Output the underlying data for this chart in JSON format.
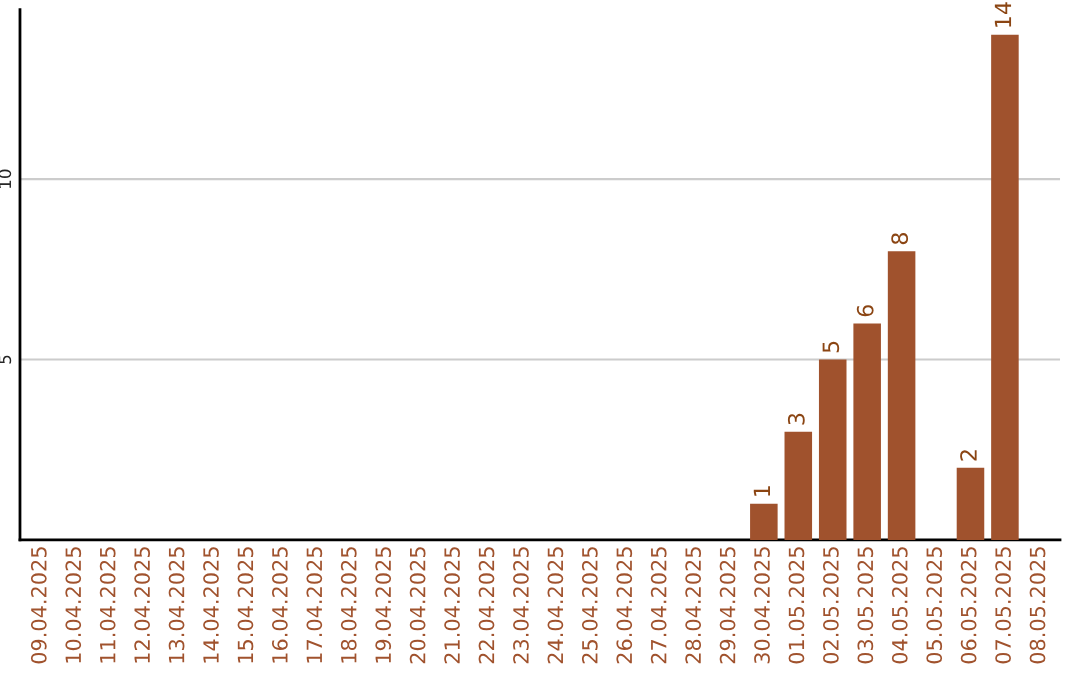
{
  "chart_data": {
    "type": "bar",
    "categories": [
      "09.04.2025",
      "10.04.2025",
      "11.04.2025",
      "12.04.2025",
      "13.04.2025",
      "14.04.2025",
      "15.04.2025",
      "16.04.2025",
      "17.04.2025",
      "18.04.2025",
      "19.04.2025",
      "20.04.2025",
      "21.04.2025",
      "22.04.2025",
      "23.04.2025",
      "24.04.2025",
      "25.04.2025",
      "26.04.2025",
      "27.04.2025",
      "28.04.2025",
      "29.04.2025",
      "30.04.2025",
      "01.05.2025",
      "02.05.2025",
      "03.05.2025",
      "04.05.2025",
      "05.05.2025",
      "06.05.2025",
      "07.05.2025",
      "08.05.2025"
    ],
    "values": [
      0,
      0,
      0,
      0,
      0,
      0,
      0,
      0,
      0,
      0,
      0,
      0,
      0,
      0,
      0,
      0,
      0,
      0,
      0,
      0,
      0,
      1,
      3,
      5,
      6,
      8,
      0,
      2,
      14,
      0
    ],
    "value_labels": [
      null,
      null,
      null,
      null,
      null,
      null,
      null,
      null,
      null,
      null,
      null,
      null,
      null,
      null,
      null,
      null,
      null,
      null,
      null,
      null,
      null,
      "1",
      "3",
      "5",
      "6",
      "8",
      null,
      "2",
      "14",
      null
    ],
    "color": "#a0522d",
    "ylim": [
      0,
      14.7
    ],
    "yticks": [
      5,
      10
    ],
    "grid": "y",
    "legend": false
  }
}
